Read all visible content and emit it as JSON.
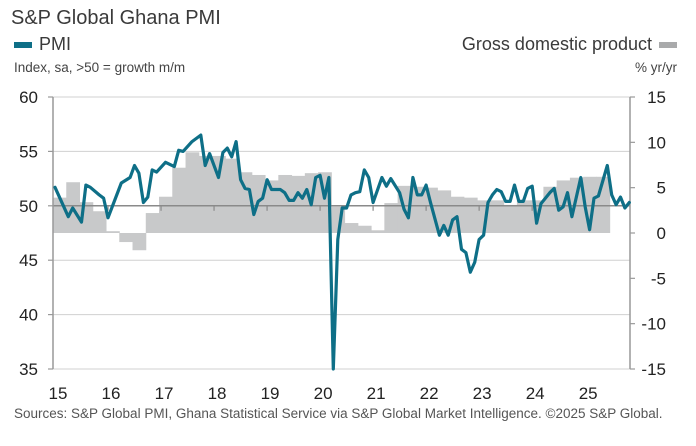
{
  "title": "S&P Global Ghana PMI",
  "legend": {
    "pmi_label": "PMI",
    "pmi_unit": "Index, sa, >50 = growth m/m",
    "gdp_label": "Gross domestic product",
    "gdp_unit": "% yr/yr"
  },
  "source": "Sources: S&P Global PMI, Ghana Statistical Service via S&P Global Market Intelligence. ©2025 S&P Global.",
  "colors": {
    "pmi": "#0e6f87",
    "gdp": "#c8c9ca",
    "grid": "#d0d0d0",
    "axis": "#999999",
    "reference_line": "#8a8a8a"
  },
  "chart_data": {
    "type": "line+area",
    "x_tick_labels": [
      "15",
      "16",
      "17",
      "18",
      "19",
      "20",
      "21",
      "22",
      "23",
      "24",
      "25"
    ],
    "x_range": [
      "2015-01",
      "2026-01"
    ],
    "left_axis": {
      "ticks": [
        60,
        55,
        50,
        45,
        40,
        35
      ],
      "ylim": [
        35,
        60
      ]
    },
    "right_axis": {
      "ticks": [
        15,
        10,
        5,
        0,
        -5,
        -10,
        -15
      ],
      "ylim": [
        -15,
        15
      ]
    },
    "reference_line": 50,
    "grid": true,
    "series": [
      {
        "name": "PMI",
        "type": "line",
        "axis": "left",
        "points": [
          [
            "2015-01",
            51.7
          ],
          [
            "2015-04",
            49.0
          ],
          [
            "2015-05",
            49.8
          ],
          [
            "2015-07",
            48.5
          ],
          [
            "2015-08",
            51.9
          ],
          [
            "2015-09",
            51.7
          ],
          [
            "2015-11",
            51.0
          ],
          [
            "2015-12",
            50.7
          ],
          [
            "2016-01",
            48.9
          ],
          [
            "2016-04",
            52.1
          ],
          [
            "2016-06",
            52.6
          ],
          [
            "2016-07",
            53.7
          ],
          [
            "2016-08",
            53.0
          ],
          [
            "2016-09",
            50.3
          ],
          [
            "2016-10",
            50.8
          ],
          [
            "2016-11",
            53.3
          ],
          [
            "2016-12",
            53.1
          ],
          [
            "2017-02",
            54.0
          ],
          [
            "2017-04",
            53.6
          ],
          [
            "2017-05",
            55.1
          ],
          [
            "2017-06",
            55.0
          ],
          [
            "2017-08",
            55.9
          ],
          [
            "2017-10",
            56.5
          ],
          [
            "2017-11",
            53.7
          ],
          [
            "2017-12",
            54.8
          ],
          [
            "2018-02",
            52.6
          ],
          [
            "2018-03",
            54.9
          ],
          [
            "2018-04",
            55.3
          ],
          [
            "2018-05",
            54.5
          ],
          [
            "2018-06",
            55.9
          ],
          [
            "2018-07",
            52.4
          ],
          [
            "2018-08",
            51.6
          ],
          [
            "2018-09",
            51.5
          ],
          [
            "2018-10",
            49.2
          ],
          [
            "2018-11",
            50.4
          ],
          [
            "2018-12",
            50.7
          ],
          [
            "2019-01",
            52.4
          ],
          [
            "2019-02",
            51.5
          ],
          [
            "2019-04",
            51.5
          ],
          [
            "2019-05",
            51.2
          ],
          [
            "2019-06",
            50.5
          ],
          [
            "2019-07",
            50.5
          ],
          [
            "2019-08",
            51.2
          ],
          [
            "2019-09",
            50.7
          ],
          [
            "2019-10",
            51.5
          ],
          [
            "2019-11",
            50.1
          ],
          [
            "2019-12",
            52.6
          ],
          [
            "2020-01",
            52.8
          ],
          [
            "2020-02",
            50.7
          ],
          [
            "2020-03",
            52.6
          ],
          [
            "2020-04",
            35.0
          ],
          [
            "2020-05",
            46.9
          ],
          [
            "2020-06",
            49.8
          ],
          [
            "2020-07",
            49.8
          ],
          [
            "2020-08",
            51.0
          ],
          [
            "2020-09",
            51.2
          ],
          [
            "2020-10",
            51.3
          ],
          [
            "2020-11",
            53.3
          ],
          [
            "2020-12",
            52.6
          ],
          [
            "2021-01",
            50.3
          ],
          [
            "2021-03",
            52.6
          ],
          [
            "2021-04",
            51.8
          ],
          [
            "2021-05",
            52.5
          ],
          [
            "2021-07",
            51.2
          ],
          [
            "2021-08",
            49.7
          ],
          [
            "2021-09",
            48.9
          ],
          [
            "2021-10",
            52.6
          ],
          [
            "2021-11",
            51.0
          ],
          [
            "2021-12",
            51.0
          ],
          [
            "2022-01",
            51.9
          ],
          [
            "2022-02",
            50.3
          ],
          [
            "2022-04",
            47.3
          ],
          [
            "2022-05",
            48.2
          ],
          [
            "2022-06",
            47.3
          ],
          [
            "2022-07",
            48.7
          ],
          [
            "2022-08",
            49.0
          ],
          [
            "2022-09",
            46.0
          ],
          [
            "2022-10",
            45.7
          ],
          [
            "2022-11",
            43.9
          ],
          [
            "2022-12",
            44.8
          ],
          [
            "2023-01",
            46.9
          ],
          [
            "2023-02",
            47.3
          ],
          [
            "2023-03",
            50.3
          ],
          [
            "2023-04",
            51.0
          ],
          [
            "2023-05",
            51.5
          ],
          [
            "2023-06",
            51.3
          ],
          [
            "2023-07",
            50.4
          ],
          [
            "2023-08",
            50.4
          ],
          [
            "2023-09",
            51.9
          ],
          [
            "2023-10",
            50.4
          ],
          [
            "2023-11",
            50.4
          ],
          [
            "2023-12",
            51.6
          ],
          [
            "2024-01",
            51.8
          ],
          [
            "2024-02",
            48.4
          ],
          [
            "2024-03",
            50.2
          ],
          [
            "2024-05",
            51.2
          ],
          [
            "2024-06",
            51.6
          ],
          [
            "2024-07",
            49.6
          ],
          [
            "2024-08",
            49.9
          ],
          [
            "2024-09",
            51.2
          ],
          [
            "2024-10",
            49.0
          ],
          [
            "2024-12",
            52.6
          ],
          [
            "2025-01",
            49.9
          ],
          [
            "2025-02",
            47.8
          ],
          [
            "2025-03",
            50.7
          ],
          [
            "2025-04",
            50.9
          ],
          [
            "2025-06",
            53.7
          ],
          [
            "2025-07",
            51.0
          ],
          [
            "2025-08",
            50.1
          ],
          [
            "2025-09",
            50.8
          ],
          [
            "2025-10",
            49.8
          ],
          [
            "2025-11",
            50.3
          ]
        ]
      },
      {
        "name": "Gross domestic product",
        "type": "step-area",
        "axis": "right",
        "points": [
          [
            "2015-Q1",
            3.9
          ],
          [
            "2015-Q2",
            5.6
          ],
          [
            "2015-Q3",
            3.4
          ],
          [
            "2015-Q4",
            2.4
          ],
          [
            "2016-Q1",
            0.2
          ],
          [
            "2016-Q2",
            -1.0
          ],
          [
            "2016-Q3",
            -1.9
          ],
          [
            "2016-Q4",
            2.2
          ],
          [
            "2017-Q1",
            4.0
          ],
          [
            "2017-Q2",
            7.2
          ],
          [
            "2017-Q3",
            8.9
          ],
          [
            "2017-Q4",
            8.5
          ],
          [
            "2018-Q1",
            8.5
          ],
          [
            "2018-Q2",
            8.2
          ],
          [
            "2018-Q3",
            6.7
          ],
          [
            "2018-Q4",
            6.4
          ],
          [
            "2019-Q1",
            5.8
          ],
          [
            "2019-Q2",
            6.4
          ],
          [
            "2019-Q3",
            6.3
          ],
          [
            "2019-Q4",
            6.6
          ],
          [
            "2020-Q1",
            6.7
          ],
          [
            "2020-Q2",
            2.9
          ],
          [
            "2020-Q3",
            1.1
          ],
          [
            "2020-Q4",
            0.8
          ],
          [
            "2021-Q1",
            0.3
          ],
          [
            "2021-Q2",
            3.3
          ],
          [
            "2021-Q3",
            5.2
          ],
          [
            "2021-Q4",
            5.1
          ],
          [
            "2022-Q1",
            5.0
          ],
          [
            "2022-Q2",
            4.7
          ],
          [
            "2022-Q3",
            4.0
          ],
          [
            "2022-Q4",
            3.9
          ],
          [
            "2023-Q1",
            3.6
          ],
          [
            "2023-Q2",
            3.6
          ],
          [
            "2023-Q3",
            3.1
          ],
          [
            "2023-Q4",
            3.6
          ],
          [
            "2024-Q1",
            3.6
          ],
          [
            "2024-Q2",
            5.1
          ],
          [
            "2024-Q3",
            5.8
          ],
          [
            "2024-Q4",
            6.1
          ],
          [
            "2025-Q1",
            6.2
          ],
          [
            "2025-Q2",
            6.2
          ]
        ]
      }
    ]
  }
}
